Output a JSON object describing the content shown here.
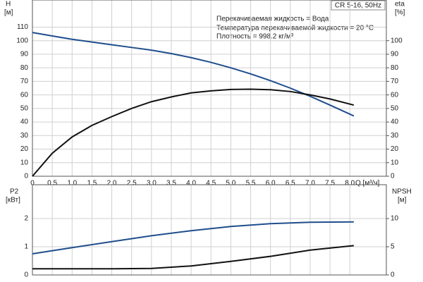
{
  "chart_data": [
    {
      "type": "line",
      "annotations": [
        "CR 5-16, 50Hz",
        "Перекачиваемая жидкость = Вода",
        "Температура перекачиваемой жидкости = 20 °C",
        "Плотность = 998.2 кг/м³"
      ],
      "ylabel": [
        "H",
        "[м]"
      ],
      "y2label": [
        "eta",
        "[%]"
      ],
      "xlabel": "Q [м³/ч]",
      "x": [
        0,
        0.5,
        1,
        1.5,
        2,
        2.5,
        3,
        3.5,
        4,
        4.5,
        5,
        5.5,
        6,
        6.5,
        7,
        7.5,
        8.1
      ],
      "series": [
        {
          "name": "H",
          "color": "#1f4e8c",
          "values": [
            106,
            103.5,
            101,
            99,
            97,
            95,
            93,
            90.5,
            87.5,
            84,
            80,
            75.5,
            70.5,
            65,
            59,
            52.5,
            44.5
          ]
        },
        {
          "name": "eta",
          "color": "#111111",
          "axis": "y2",
          "values": [
            0,
            17,
            29,
            37.5,
            44,
            50,
            55,
            58.5,
            61.5,
            63,
            64,
            64.2,
            63.8,
            62.5,
            60,
            57,
            52.5
          ]
        }
      ],
      "xlim": [
        0,
        8.92
      ],
      "xticks": [
        0,
        0.5,
        {
          "value": 1,
          "label": "1.0"
        },
        1.5,
        {
          "value": 2,
          "label": "2.0"
        },
        2.5,
        {
          "value": 3,
          "label": "3.0"
        },
        3.5,
        {
          "value": 4,
          "label": "4.0"
        },
        4.5,
        {
          "value": 5,
          "label": "5.0"
        },
        5.5,
        {
          "value": 6,
          "label": "6.0"
        },
        6.5,
        {
          "value": 7,
          "label": "7.0"
        },
        7.5,
        {
          "value": 8,
          "label": "8.0"
        }
      ],
      "ylim": [
        0,
        130
      ],
      "yticks": [
        0,
        10,
        20,
        30,
        40,
        50,
        60,
        70,
        80,
        90,
        100,
        110
      ],
      "y2lim": [
        0,
        130
      ],
      "y2ticks": [
        0,
        10,
        20,
        30,
        40,
        50,
        60,
        70,
        80,
        90,
        100
      ],
      "grid": true
    },
    {
      "type": "line",
      "ylabel": [
        "P2",
        "[кВт]"
      ],
      "y2label": [
        "NPSH",
        "[м]"
      ],
      "x": [
        0,
        1,
        2,
        3,
        4,
        5,
        6,
        7,
        8.1
      ],
      "series": [
        {
          "name": "P2",
          "color": "#1f4e8c",
          "values": [
            0.75,
            0.97,
            1.18,
            1.39,
            1.57,
            1.72,
            1.82,
            1.87,
            1.88
          ]
        },
        {
          "name": "NPSH",
          "color": "#111111",
          "axis": "y2",
          "values": [
            1.1,
            1.1,
            1.1,
            1.15,
            1.6,
            2.4,
            3.3,
            4.4,
            5.2
          ]
        }
      ],
      "ylim": [
        0,
        3.2
      ],
      "yticks": [
        0,
        1,
        2
      ],
      "y2lim": [
        0,
        16
      ],
      "y2ticks": [
        0,
        5,
        10
      ],
      "grid": true
    }
  ]
}
